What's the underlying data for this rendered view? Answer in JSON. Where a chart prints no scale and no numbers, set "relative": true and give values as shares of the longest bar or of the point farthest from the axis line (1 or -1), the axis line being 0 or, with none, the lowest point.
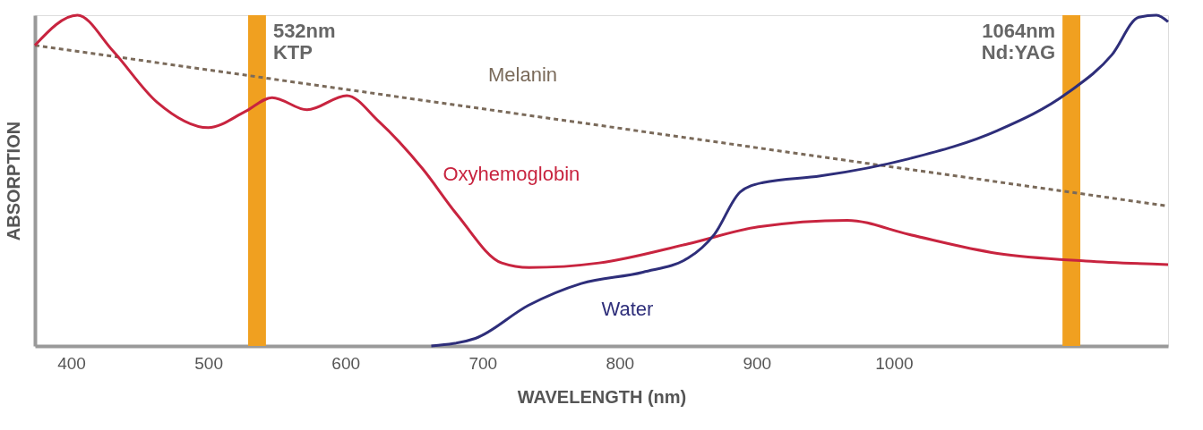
{
  "chart_data": {
    "type": "line",
    "relative": true,
    "xlabel": "WAVELENGTH (nm)",
    "ylabel": "ABSORPTION",
    "xlim": [
      373.5,
      1200
    ],
    "xticks": [
      400,
      500,
      600,
      700,
      800,
      900,
      1000
    ],
    "grid": false,
    "legend": false,
    "marker": "none",
    "bands": [
      {
        "axis": "x",
        "from": 529,
        "to": 542,
        "label": "532nm\nKTP",
        "color": "#f0a020"
      },
      {
        "axis": "x",
        "from": 1123,
        "to": 1136,
        "label": "1064nm\nNd:YAG",
        "color": "#f0a020"
      }
    ],
    "series": [
      {
        "name": "Melanin",
        "color": "#7a6a5a",
        "line_style": "dashed",
        "x": [
          373.5,
          1200
        ],
        "values": [
          0.909,
          0.423
        ]
      },
      {
        "name": "Oxyhemoglobin",
        "color": "#c8243f",
        "line_style": "solid",
        "x": [
          373.5,
          404.5,
          430,
          462.6,
          500,
          527,
          546.5,
          572,
          601,
          624,
          656,
          682,
          714,
          734,
          785,
          850,
          901,
          966,
          1011,
          1075.5,
          1140,
          1200
        ],
        "values": [
          0.909,
          1,
          0.894,
          0.737,
          0.66,
          0.709,
          0.751,
          0.714,
          0.757,
          0.68,
          0.537,
          0.394,
          0.251,
          0.237,
          0.251,
          0.309,
          0.36,
          0.38,
          0.337,
          0.28,
          0.257,
          0.246
        ]
      },
      {
        "name": "Water",
        "color": "#2e2e7a",
        "line_style": "solid",
        "x": [
          662.6,
          694.8,
          733.5,
          772,
          817,
          850,
          869,
          888,
          904.5,
          946.5,
          1011,
          1075.5,
          1127,
          1159,
          1178.7,
          1191.6,
          1200
        ],
        "values": [
          0,
          0.023,
          0.123,
          0.189,
          0.223,
          0.266,
          0.337,
          0.466,
          0.494,
          0.514,
          0.566,
          0.651,
          0.766,
          0.88,
          0.994,
          1,
          0.98
        ]
      }
    ]
  }
}
